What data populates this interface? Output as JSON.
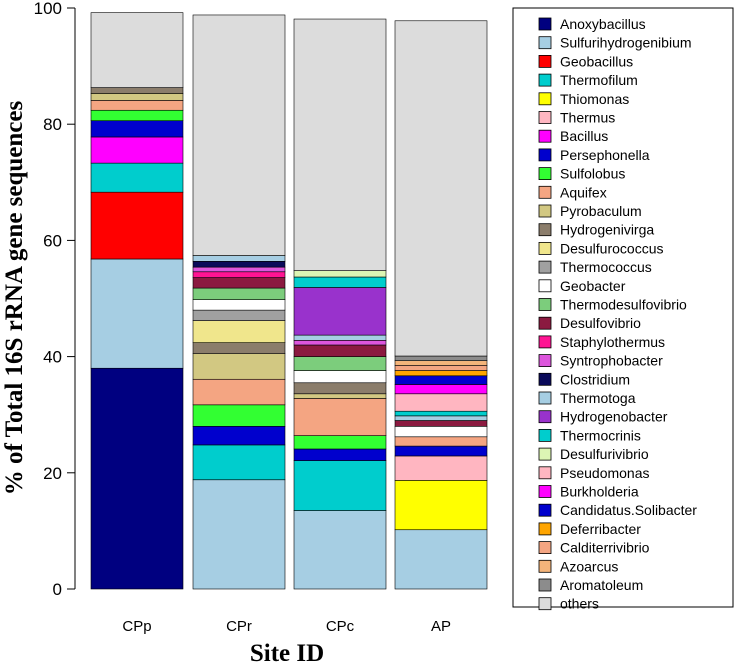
{
  "chart_data": {
    "type": "bar",
    "stacked": true,
    "title": "",
    "xlabel": "Site ID",
    "ylabel": "% of Total 16S rRNA gene sequences",
    "ylim": [
      0,
      100
    ],
    "yticks": [
      0,
      20,
      40,
      60,
      80,
      100
    ],
    "categories": [
      "CPp",
      "CPr",
      "CPc",
      "AP"
    ],
    "legend_position": "right",
    "series": [
      {
        "name": "Anoxybacillus",
        "color": "#000080",
        "values": [
          38.0,
          0,
          0,
          0
        ]
      },
      {
        "name": "Sulfurihydrogenibium",
        "color": "#a6cee3",
        "values": [
          18.8,
          18.8,
          13.5,
          10.2
        ]
      },
      {
        "name": "Geobacillus",
        "color": "#ff0000",
        "values": [
          11.5,
          0,
          0,
          0
        ]
      },
      {
        "name": "Thermofilum",
        "color": "#00cdcd",
        "values": [
          5.0,
          6.0,
          8.6,
          0
        ]
      },
      {
        "name": "Thiomonas",
        "color": "#ffff00",
        "values": [
          0,
          0,
          0,
          8.5
        ]
      },
      {
        "name": "Thermus",
        "color": "#ffb6c1",
        "values": [
          0,
          0,
          0,
          4.2
        ]
      },
      {
        "name": "Bacillus",
        "color": "#ff00ff",
        "values": [
          4.5,
          0,
          0,
          0
        ]
      },
      {
        "name": "Persephonella",
        "color": "#0000cd",
        "values": [
          2.8,
          3.2,
          2.0,
          1.7
        ]
      },
      {
        "name": "Sulfolobus",
        "color": "#32ff32",
        "values": [
          1.8,
          3.7,
          2.3,
          0
        ]
      },
      {
        "name": "Aquifex",
        "color": "#f4a582",
        "values": [
          1.7,
          4.4,
          6.4,
          1.6
        ]
      },
      {
        "name": "Pyrobaculum",
        "color": "#d2c882",
        "values": [
          1.2,
          4.4,
          0.8,
          0
        ]
      },
      {
        "name": "Hydrogenivirga",
        "color": "#8b7d6b",
        "values": [
          1.0,
          1.9,
          1.9,
          0
        ]
      },
      {
        "name": "Desulfurococcus",
        "color": "#f0e68c",
        "values": [
          0,
          3.8,
          0,
          0
        ]
      },
      {
        "name": "Thermococcus",
        "color": "#a0a0a0",
        "values": [
          0,
          1.8,
          0,
          0
        ]
      },
      {
        "name": "Geobacter",
        "color": "#ffffff",
        "values": [
          0,
          1.8,
          2.1,
          1.8
        ]
      },
      {
        "name": "Thermodesulfovibrio",
        "color": "#7ccd7c",
        "values": [
          0,
          2.0,
          2.4,
          0
        ]
      },
      {
        "name": "Desulfovibrio",
        "color": "#8b1a40",
        "values": [
          0,
          1.8,
          2.0,
          1.0
        ]
      },
      {
        "name": "Staphylothermus",
        "color": "#ff1493",
        "values": [
          0,
          1.0,
          0,
          0
        ]
      },
      {
        "name": "Syntrophobacter",
        "color": "#dd55dd",
        "values": [
          0,
          0.8,
          0.8,
          0
        ]
      },
      {
        "name": "Clostridium",
        "color": "#0a0a5a",
        "values": [
          0,
          1.0,
          0,
          0
        ]
      },
      {
        "name": "Thermotoga",
        "color": "#a6cee3",
        "values": [
          0,
          1.0,
          0.9,
          0.8
        ]
      },
      {
        "name": "Hydrogenobacter",
        "color": "#9932cc",
        "values": [
          0,
          0,
          8.2,
          0
        ]
      },
      {
        "name": "Thermocrinis",
        "color": "#00cdcd",
        "values": [
          0,
          0,
          1.8,
          0.8
        ]
      },
      {
        "name": "Desulfurivibrio",
        "color": "#dcf5b4",
        "values": [
          0,
          0,
          1.1,
          0
        ]
      },
      {
        "name": "Pseudomonas",
        "color": "#ffb6c1",
        "values": [
          0,
          0,
          0,
          3.0
        ]
      },
      {
        "name": "Burkholderia",
        "color": "#ff00ff",
        "values": [
          0,
          0,
          0,
          1.6
        ]
      },
      {
        "name": "Candidatus.Solibacter",
        "color": "#0000cd",
        "values": [
          0,
          0,
          0,
          1.5
        ]
      },
      {
        "name": "Deferribacter",
        "color": "#ffa500",
        "values": [
          0,
          0,
          0,
          0.9
        ]
      },
      {
        "name": "Calditerrivibrio",
        "color": "#f4a582",
        "values": [
          0,
          0,
          0,
          0.9
        ]
      },
      {
        "name": "Azoarcus",
        "color": "#f4b47a",
        "values": [
          0,
          0,
          0,
          0.8
        ]
      },
      {
        "name": "Aromatoleum",
        "color": "#8c8c8c",
        "values": [
          0,
          0,
          0,
          0.8
        ]
      },
      {
        "name": "others",
        "color": "#dcdcdc",
        "values": [
          12.9,
          41.4,
          43.3,
          57.7
        ]
      }
    ]
  }
}
